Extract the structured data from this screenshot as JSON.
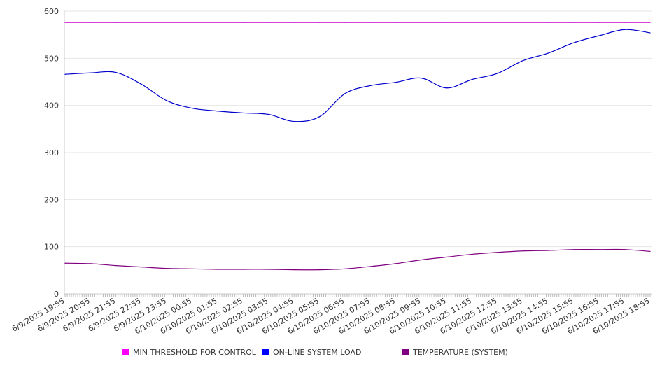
{
  "chart_data": {
    "type": "line",
    "ylim": [
      0,
      600
    ],
    "yticks": [
      0,
      100,
      200,
      300,
      400,
      500,
      600
    ],
    "grid": true,
    "legend_position": "bottom",
    "x": [
      "6/9/2025 19:55",
      "6/9/2025 20:55",
      "6/9/2025 21:55",
      "6/9/2025 22:55",
      "6/9/2025 23:55",
      "6/10/2025 00:55",
      "6/10/2025 01:55",
      "6/10/2025 02:55",
      "6/10/2025 03:55",
      "6/10/2025 04:55",
      "6/10/2025 05:55",
      "6/10/2025 06:55",
      "6/10/2025 07:55",
      "6/10/2025 08:55",
      "6/10/2025 09:55",
      "6/10/2025 10:55",
      "6/10/2025 11:55",
      "6/10/2025 12:55",
      "6/10/2025 13:55",
      "6/10/2025 14:55",
      "6/10/2025 15:55",
      "6/10/2025 16:55",
      "6/10/2025 17:55",
      "6/10/2025 18:55"
    ],
    "series": [
      {
        "name": "MIN THRESHOLD FOR CONTROL",
        "color": "#cc00cc",
        "values": [
          576,
          576,
          576,
          576,
          576,
          576,
          576,
          576,
          576,
          576,
          576,
          576,
          576,
          576,
          576,
          576,
          576,
          576,
          576,
          576,
          576,
          576,
          576,
          576
        ]
      },
      {
        "name": "ON-LINE SYSTEM LOAD",
        "color": "#0000cc",
        "values": [
          466,
          469,
          470,
          445,
          410,
          394,
          388,
          384,
          381,
          366,
          376,
          425,
          442,
          449,
          458,
          437,
          455,
          468,
          495,
          511,
          533,
          548,
          561,
          554
        ]
      },
      {
        "name": "TEMPERATURE (SYSTEM)",
        "color": "#800080",
        "values": [
          65,
          64,
          60,
          57,
          54,
          53,
          52,
          52,
          52,
          51,
          51,
          53,
          58,
          64,
          72,
          78,
          84,
          88,
          91,
          92,
          94,
          94,
          94,
          90
        ]
      }
    ]
  }
}
